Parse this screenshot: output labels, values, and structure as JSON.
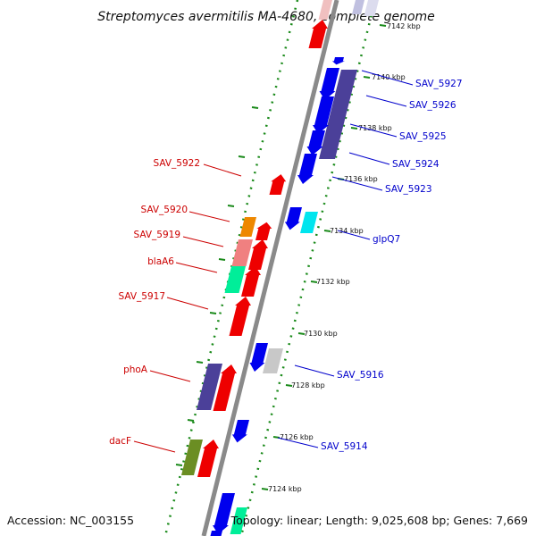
{
  "title": "Streptomyces avermitilis MA-4680, complete genome",
  "footer": {
    "accession": "Accession: NC_003155",
    "topology": "Topology: linear; Length: 9,025,608 bp; Genes: 7,669"
  },
  "colors": {
    "backbone": "#8a8a8a",
    "ruler": "#1a8a1a",
    "label_left": "#cc0000",
    "label_right": "#0000cc"
  },
  "ruler_labels": [
    "7142 kbp",
    "7140 kbp",
    "7138 kbp",
    "7136 kbp",
    "7134 kbp",
    "7132 kbp",
    "7130 kbp",
    "7128 kbp",
    "7126 kbp",
    "7124 kbp"
  ],
  "left_labels": [
    "SAV_5922",
    "SAV_5920",
    "SAV_5919",
    "blaA6",
    "SAV_5917",
    "phoA",
    "dacF"
  ],
  "right_labels": [
    "SAV_5927",
    "SAV_5926",
    "SAV_5925",
    "SAV_5924",
    "SAV_5923",
    "glpQ7",
    "SAV_5916",
    "SAV_5914"
  ]
}
